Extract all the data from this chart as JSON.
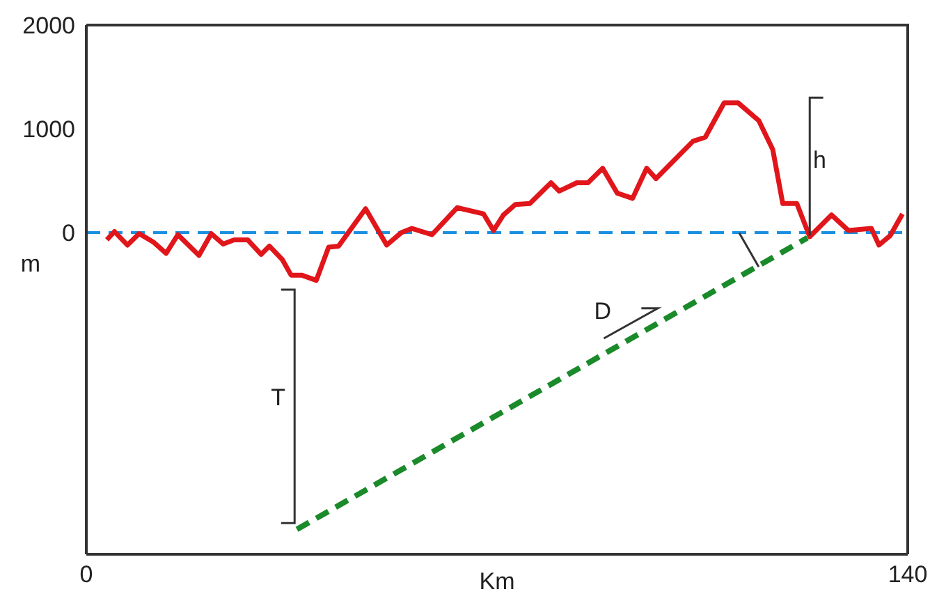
{
  "chart_data": {
    "type": "line",
    "xlabel": "Km",
    "ylabel": "m",
    "xlim": [
      0,
      140
    ],
    "xticks": [
      0,
      140
    ],
    "ylim": [
      -3100,
      2000
    ],
    "yticks": [
      0,
      1000,
      2000
    ],
    "marker": "none",
    "series": [
      {
        "color": "#e0161b",
        "line_style": "solid",
        "x": [
          3.5,
          4.8,
          7.0,
          9.0,
          11.4,
          13.6,
          15.6,
          19.2,
          21.3,
          23.3,
          25.2,
          27.5,
          29.8,
          31.2,
          33.4,
          34.9,
          36.7,
          39.2,
          41.3,
          43.0,
          47.6,
          51.2,
          53.7,
          55.5,
          58.9,
          63.2,
          67.7,
          69.4,
          71.1,
          73.1,
          75.6,
          79.2,
          80.6,
          83.6,
          85.5,
          88.0,
          90.5,
          93.1,
          95.5,
          97.1,
          103.4,
          105.5,
          108.7,
          111.1,
          114.6,
          117.0,
          118.7,
          121.1,
          123.3,
          127.0,
          129.9,
          133.8,
          135.1,
          137.0,
          139.1
        ],
        "values": [
          -70,
          10,
          -120,
          -10,
          -90,
          -200,
          -20,
          -220,
          -10,
          -110,
          -70,
          -70,
          -210,
          -130,
          -260,
          -410,
          -410,
          -460,
          -140,
          -130,
          230,
          -120,
          0,
          40,
          -20,
          240,
          180,
          20,
          170,
          270,
          280,
          480,
          400,
          480,
          480,
          620,
          380,
          330,
          620,
          520,
          880,
          920,
          1250,
          1250,
          1080,
          800,
          280,
          280,
          -40,
          170,
          20,
          40,
          -120,
          -30,
          180
        ]
      },
      {
        "type": "line",
        "color": "#1a8a2a",
        "line_style": "dashed",
        "x": [
          35.9,
          122.9
        ],
        "values": [
          -2860,
          -50
        ]
      }
    ],
    "ref_lines": [
      {
        "axis": "y",
        "value": 0,
        "color": "#1b8fe0",
        "line_style": "dashed"
      }
    ],
    "annotations": [
      "T",
      "D",
      "h"
    ]
  }
}
